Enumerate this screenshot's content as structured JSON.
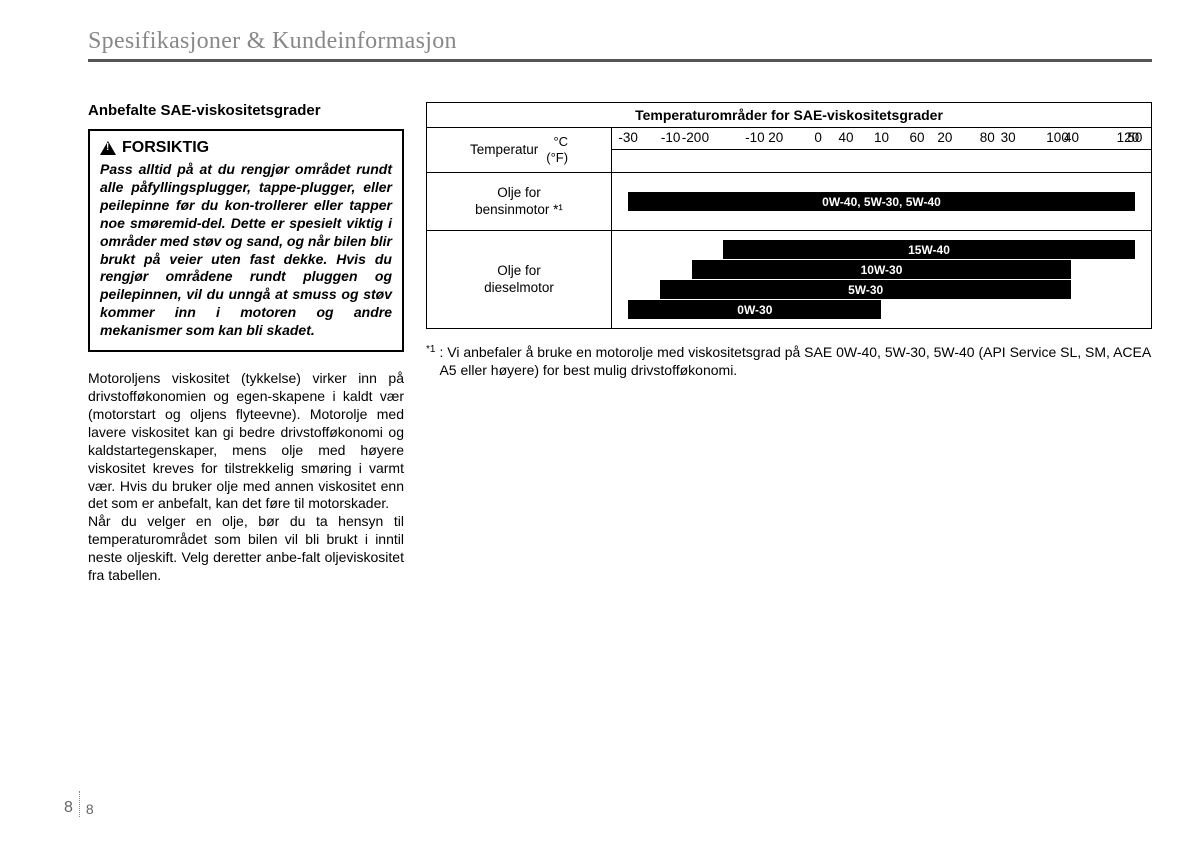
{
  "header": {
    "title": "Spesifikasjoner & Kundeinformasjon"
  },
  "left": {
    "section_heading": "Anbefalte SAE-viskositetsgrader",
    "caution_title": "FORSIKTIG",
    "caution_body": "Pass alltid på at du rengjør området rundt alle påfyllingsplugger, tappe-plugger, eller peilepinne før du kon-trollerer eller tapper noe smøremid-del. Dette er spesielt viktig i områder med støv og sand, og når bilen blir brukt på veier uten fast dekke. Hvis du rengjør områdene rundt pluggen og peilepinnen, vil du unngå at smuss og støv kommer inn i motoren og andre mekanismer som kan bli skadet.",
    "body_text": "Motoroljens viskositet (tykkelse) virker inn på drivstofføkonomien og egen-skapene i kaldt vær (motorstart og oljens flyteevne). Motorolje med lavere viskositet kan gi bedre drivstofføkonomi og kaldstartegenskaper, mens olje med høyere viskositet kreves for tilstrekkelig smøring i varmt vær. Hvis du bruker olje med annen viskositet enn det som er anbefalt, kan det føre til motorskader.\nNår du velger en olje, bør du ta hensyn til temperaturområdet som bilen vil bli brukt i inntil neste oljeskift. Velg deretter anbe-falt oljeviskositet fra tabellen."
  },
  "chart": {
    "title": "Temperaturområder for SAE-viskositetsgrader",
    "temp_label": "Temperatur",
    "unit_c": "°C",
    "unit_f": "(°F)",
    "c_scale": {
      "min": -30,
      "max": 50,
      "ticks": [
        -30,
        -20,
        -10,
        0,
        10,
        20,
        30,
        40,
        50
      ]
    },
    "f_scale": {
      "ticks": [
        -10,
        0,
        20,
        40,
        60,
        80,
        100,
        120
      ],
      "positions_c": [
        -23.3,
        -17.8,
        -6.7,
        4.4,
        15.6,
        26.7,
        37.8,
        48.9
      ]
    },
    "rows": [
      {
        "label_line1": "Olje for",
        "label_line2": "bensinmotor *¹",
        "bars": [
          {
            "label": "0W-40, 5W-30, 5W-40",
            "from_c": -30,
            "to_c": 50
          }
        ]
      },
      {
        "label_line1": "Olje for",
        "label_line2": "dieselmotor",
        "bars": [
          {
            "label": "15W-40",
            "from_c": -15,
            "to_c": 50
          },
          {
            "label": "10W-30",
            "from_c": -20,
            "to_c": 40
          },
          {
            "label": "5W-30",
            "from_c": -25,
            "to_c": 40
          },
          {
            "label": "0W-30",
            "from_c": -30,
            "to_c": 10
          }
        ]
      }
    ],
    "colors": {
      "bar_bg": "#000000",
      "bar_text": "#ffffff",
      "border": "#000000"
    }
  },
  "footnote": {
    "mark": "*1",
    "text": ": Vi anbefaler å bruke en motorolje med viskositetsgrad på SAE 0W-40, 5W-30, 5W-40 (API Service SL, SM, ACEA A5 eller høyere) for best mulig drivstofføkonomi."
  },
  "page_number": {
    "chapter": "8",
    "page": "8"
  }
}
